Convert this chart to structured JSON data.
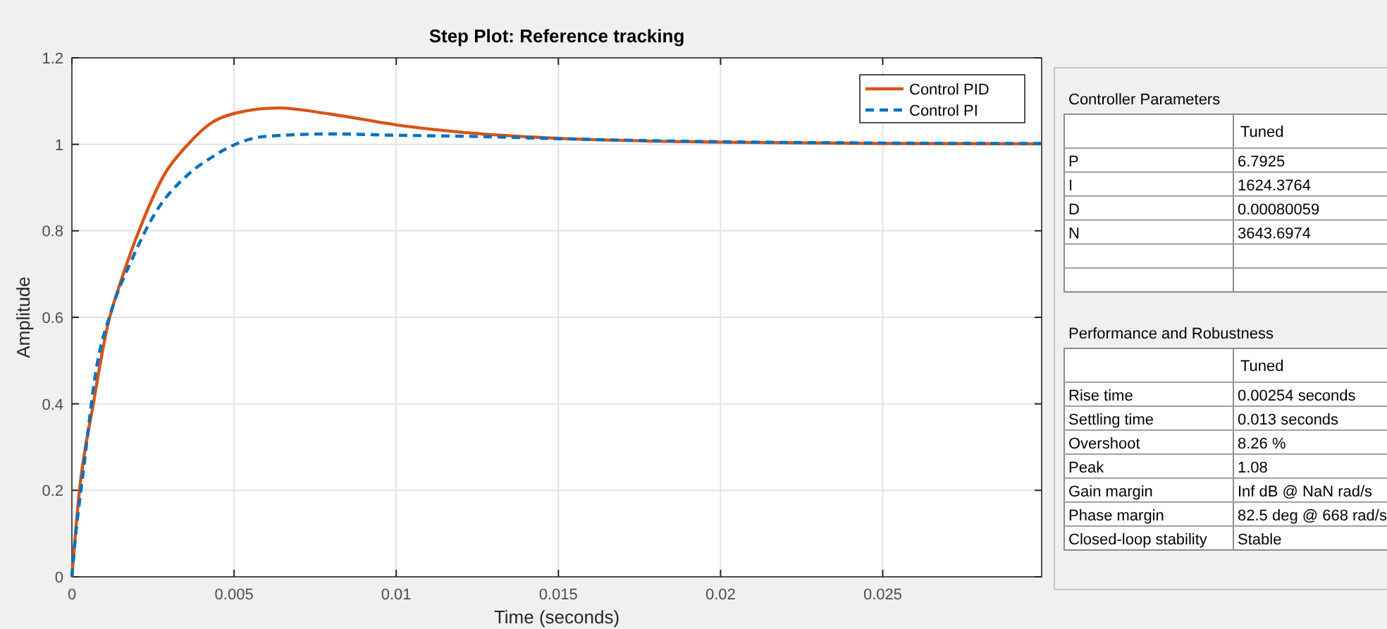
{
  "chart_data": [
    {
      "type": "line",
      "title": "Step Plot: Reference tracking",
      "xlabel": "Time (seconds)",
      "ylabel": "Amplitude",
      "xlim": [
        0,
        0.0299
      ],
      "ylim": [
        0,
        1.2
      ],
      "xticks": [
        0,
        0.005,
        0.01,
        0.015,
        0.02,
        0.025
      ],
      "yticks": [
        0,
        0.2,
        0.4,
        0.6,
        0.8,
        1,
        1.2
      ],
      "grid": true,
      "legend": "top right",
      "marker": "none",
      "series": [
        {
          "name": "Control PID",
          "color": "#d95319",
          "line_style": "solid",
          "x": [
            0,
            0.00022,
            0.00066,
            0.0011,
            0.00154,
            0.00212,
            0.00285,
            0.00358,
            0.00431,
            0.00504,
            0.00636,
            0.00797,
            0.01,
            0.0125,
            0.015,
            0.02,
            0.025,
            0.0299
          ],
          "values": [
            0,
            0.19,
            0.4,
            0.58,
            0.69,
            0.81,
            0.93,
            1.0,
            1.05,
            1.072,
            1.084,
            1.07,
            1.045,
            1.025,
            1.014,
            1.005,
            1.002,
            1.001
          ]
        },
        {
          "name": "Control PI",
          "color": "#0072bd",
          "line_style": "dashed",
          "x": [
            0,
            7e-05,
            0.00037,
            0.00073,
            0.00124,
            0.00183,
            0.00256,
            0.00358,
            0.00431,
            0.00504,
            0.00592,
            0.00797,
            0.01,
            0.0125,
            0.015,
            0.02,
            0.025,
            0.0299
          ],
          "values": [
            0,
            0.06,
            0.255,
            0.47,
            0.62,
            0.73,
            0.84,
            0.93,
            0.97,
            1.0,
            1.018,
            1.024,
            1.021,
            1.018,
            1.013,
            1.006,
            1.003,
            1.002
          ]
        }
      ]
    },
    {
      "type": "other",
      "title": "Controller Parameters",
      "categories": [
        "Tuned"
      ],
      "y_categories": [
        "P",
        "I",
        "D",
        "N",
        null,
        null
      ],
      "cell_labels": [
        [
          "6.7925"
        ],
        [
          "1624.3764"
        ],
        [
          "0.00080059"
        ],
        [
          "3643.6974"
        ],
        [
          null
        ],
        [
          null
        ]
      ]
    },
    {
      "type": "other",
      "title": "Performance and Robustness",
      "categories": [
        "Tuned"
      ],
      "y_categories": [
        "Rise time",
        "Settling time",
        "Overshoot",
        "Peak",
        "Gain margin",
        "Phase margin",
        "Closed-loop stability"
      ],
      "cell_labels": [
        [
          "0.00254 seconds"
        ],
        [
          "0.013 seconds"
        ],
        [
          "8.26 %"
        ],
        [
          "1.08"
        ],
        [
          "Inf dB @ NaN rad/s"
        ],
        [
          "82.5 deg @ 668 rad/s"
        ],
        [
          "Stable"
        ]
      ]
    }
  ]
}
